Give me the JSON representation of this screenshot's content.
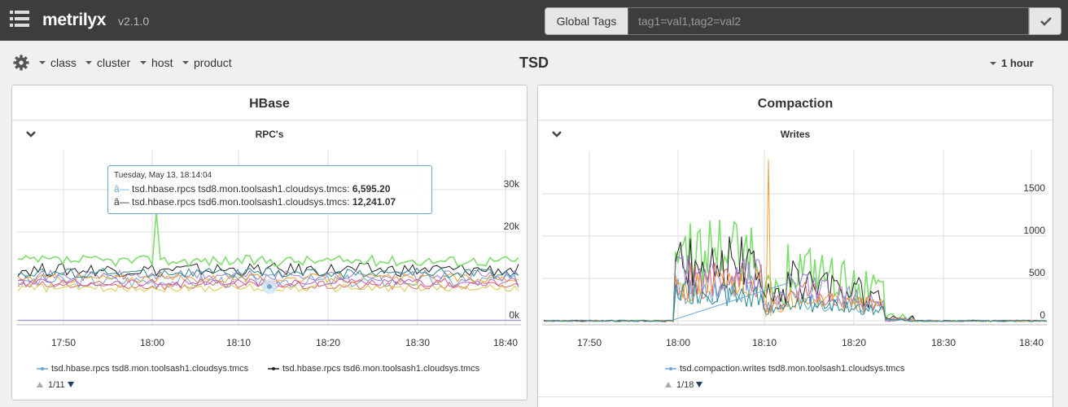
{
  "navbar": {
    "menu_icon": "list-icon",
    "brand": "metrilyx",
    "version": "v2.1.0",
    "global_tags_label": "Global Tags",
    "global_tags_value": "tag1=val1,tag2=val2",
    "apply_icon": "checkmark-icon"
  },
  "toolbar": {
    "settings_icon": "gear-icon",
    "tag_filters": [
      "class",
      "cluster",
      "host",
      "product"
    ],
    "page_title": "TSD",
    "time_range": "1 hour"
  },
  "panels": [
    {
      "title": "HBase",
      "graph_title": "RPC's",
      "legend": [
        {
          "label": "tsd.hbase.rpcs tsd8.mon.toolsash1.cloudsys.tmcs",
          "color": "#6aa6d6"
        },
        {
          "label": "tsd.hbase.rpcs tsd6.mon.toolsash1.cloudsys.tmcs",
          "color": "#222222"
        }
      ],
      "pager": "1/11",
      "tooltip": {
        "date": "Tuesday, May 13, 18:14:04",
        "rows": [
          {
            "prefix": "â—",
            "series": " tsd.hbase.rpcs tsd8.mon.toolsash1.cloudsys.tmcs: ",
            "value": "6,595.20",
            "color": "#6aa6d6"
          },
          {
            "prefix": "â—",
            "series": " tsd.hbase.rpcs tsd6.mon.toolsash1.cloudsys.tmcs: ",
            "value": "12,241.07",
            "color": "#333333"
          }
        ]
      }
    },
    {
      "title": "Compaction",
      "graph_title": "Writes",
      "legend": [
        {
          "label": "tsd.compaction.writes tsd8.mon.toolsash1.cloudsys.tmcs",
          "color": "#6aa6d6"
        }
      ],
      "pager": "1/18"
    }
  ],
  "chart_data": [
    {
      "type": "line",
      "title": "RPC's",
      "x_ticks": [
        "17:50",
        "18:00",
        "18:10",
        "18:20",
        "18:30",
        "18:40"
      ],
      "y_ticks": [
        "0k",
        "20k",
        "30k"
      ],
      "ylim": [
        0,
        38000
      ],
      "series": [
        {
          "name": "tsd.hbase.rpcs tsd8.mon.toolsash1.cloudsys.tmcs",
          "color": "#6aa6d6",
          "base": 9000,
          "amp": 1500
        },
        {
          "name": "tsd.hbase.rpcs tsd6.mon.toolsash1.cloudsys.tmcs",
          "color": "#222222",
          "base": 11500,
          "amp": 1500
        },
        {
          "color": "#7fdc6e",
          "base": 13500,
          "amp": 1200
        },
        {
          "color": "#e06666",
          "base": 8000,
          "amp": 1000
        },
        {
          "color": "#9b7fd1",
          "base": 10200,
          "amp": 1200
        },
        {
          "color": "#f0a030",
          "base": 9600,
          "amp": 1000
        },
        {
          "color": "#2a8a8a",
          "base": 10800,
          "amp": 1100
        },
        {
          "color": "#d4c84a",
          "base": 7500,
          "amp": 900
        },
        {
          "color": "#c060c0",
          "base": 8600,
          "amp": 1000
        }
      ]
    },
    {
      "type": "line",
      "title": "Writes",
      "x_ticks": [
        "17:50",
        "18:00",
        "18:10",
        "18:20",
        "18:30",
        "18:40"
      ],
      "y_ticks": [
        "0",
        "500",
        "1000",
        "1500"
      ],
      "ylim": [
        0,
        1800
      ],
      "series": [
        {
          "name": "tsd.compaction.writes tsd8.mon.toolsash1.cloudsys.tmcs",
          "color": "#6aa6d6",
          "level": 350
        },
        {
          "color": "#7fdc6e",
          "level": 800
        },
        {
          "color": "#222222",
          "level": 650
        },
        {
          "color": "#e06666",
          "level": 450
        },
        {
          "color": "#f0a030",
          "level": 400
        },
        {
          "color": "#9b7fd1",
          "level": 500
        },
        {
          "color": "#2a8a8a",
          "level": 300
        }
      ]
    }
  ]
}
